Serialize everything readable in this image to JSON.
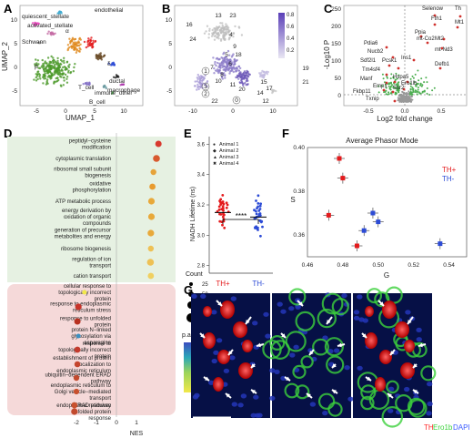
{
  "colors": {
    "green": "#4c9a2a",
    "orange": "#e08a1e",
    "red": "#e41a1c",
    "blue": "#2c4bd6",
    "purple": "#7e6ac4",
    "pink": "#ec4dc1",
    "teal": "#1fa5a5",
    "grey": "#b8b8b8"
  },
  "panels": {
    "a": "A",
    "b": "B",
    "c": "C",
    "d": "D",
    "e": "E",
    "f": "F",
    "g": "G"
  },
  "panelA": {
    "xlabel": "UMAP_1",
    "ylabel": "UMAP_2",
    "xticks": [
      "-5",
      "0",
      "5",
      "10"
    ],
    "yticks": [
      "10",
      "5",
      "0",
      "-5"
    ],
    "clusters": [
      "endothelial",
      "quiescent_stellate",
      "activated_stellate",
      "Schwann",
      "α",
      "β",
      "δ",
      "ductal",
      "macrophage",
      "T_cell",
      "immune_other",
      "B_cell"
    ]
  },
  "panelB": {
    "xticks": [
      "-10",
      "0",
      "10"
    ],
    "yticks": [
      "10",
      "5",
      "0",
      "-5"
    ],
    "legend": [
      "0.8",
      "0.6",
      "0.4",
      "0.2"
    ],
    "labels": [
      "13",
      "23",
      "16",
      "24",
      "4",
      "9",
      "5",
      "18",
      "6",
      "7",
      "8",
      "10",
      "11",
      "1",
      "3",
      "2",
      "0",
      "20",
      "22",
      "15",
      "17",
      "14",
      "12",
      "19",
      "21"
    ]
  },
  "panelC": {
    "xlabel": "Log2 fold change",
    "ylabel": "-Log10 P",
    "xticks": [
      "-0.5",
      "0.0",
      "0.5",
      "1.0"
    ],
    "yticks": [
      "250",
      "200",
      "150",
      "100",
      "50",
      "0"
    ],
    "genes": [
      "Selenow",
      "Th",
      "Fth1",
      "Mt1",
      "Ppia",
      "Mt2",
      "mt-Co2",
      "mt-Nd3",
      "Ins1",
      "Defb1",
      "Pdia6",
      "Nucb2",
      "Sdf2l1",
      "Pcsk1",
      "Tm4sf4",
      "Manf",
      "Ero1lb",
      "Fkbp11",
      "Hspa5",
      "Ssr2",
      "Emp1",
      "Txnip"
    ]
  },
  "panelD": {
    "xlabel": "NES",
    "xticks": [
      "-2",
      "-1",
      "0",
      "1"
    ],
    "terms": [
      "peptidyl−cysteine modification",
      "cytoplasmic translation",
      "ribosomal small subunit biogenesis",
      "oxidative phosphorylation",
      "ATP metabolic process",
      "energy derivation by oxidation of organic compounds",
      "generation of precursor metabolites and energy",
      "ribosome biogenesis",
      "regulation of ion transport",
      "cation transport",
      "cellular response to topologically incorrect protein",
      "response to endoplasmic reticulum stress",
      "response to unfolded protein",
      "protein N−linked glycosylation via asparagine",
      "response to topologically incorrect protein",
      "establishment of protein localization to endoplasmic reticulum",
      "ubiquitin−dependent ERAD pathway",
      "endoplasmic reticulum to Golgi vesicle−mediated transport",
      "ERAD pathway",
      "endoplasmic reticulum unfolded protein response"
    ],
    "count_title": "Count",
    "count_values": [
      "25",
      "50",
      "75",
      "100"
    ],
    "padj_title": "p.adjust",
    "padj_ticks": [
      "0.04",
      "0.03",
      "0.02",
      "0.01"
    ]
  },
  "panelE": {
    "ylabel": "NADH Lifetime (ns)",
    "yticks": [
      "3.6",
      "3.4",
      "3.2",
      "3.0",
      "2.8"
    ],
    "groups": [
      "TH+",
      "TH-"
    ],
    "animals": [
      "Animal 1",
      "Animal 2",
      "Animal 3",
      "Animal 4"
    ],
    "sig": "****"
  },
  "chart_data": {
    "type": "scatter",
    "title": "Average Phasor Mode",
    "xlabel": "G",
    "ylabel": "S",
    "xlim": [
      0.46,
      0.55
    ],
    "ylim": [
      0.35,
      0.4
    ],
    "xticks": [
      "0.46",
      "0.48",
      "0.50",
      "0.52",
      "0.54"
    ],
    "yticks": [
      "0.40",
      "0.38",
      "0.36"
    ],
    "legend_placement": "top-right",
    "series": [
      {
        "name": "TH+",
        "color": "#e41a1c",
        "points": [
          [
            0.478,
            0.395
          ],
          [
            0.48,
            0.386
          ],
          [
            0.472,
            0.369
          ],
          [
            0.488,
            0.355
          ]
        ]
      },
      {
        "name": "TH-",
        "color": "#2c4bd6",
        "points": [
          [
            0.497,
            0.37
          ],
          [
            0.5,
            0.366
          ],
          [
            0.492,
            0.362
          ],
          [
            0.535,
            0.356
          ]
        ]
      }
    ]
  },
  "panelG": {
    "legend": [
      "TH",
      "Ero1b",
      "DAPI"
    ]
  }
}
